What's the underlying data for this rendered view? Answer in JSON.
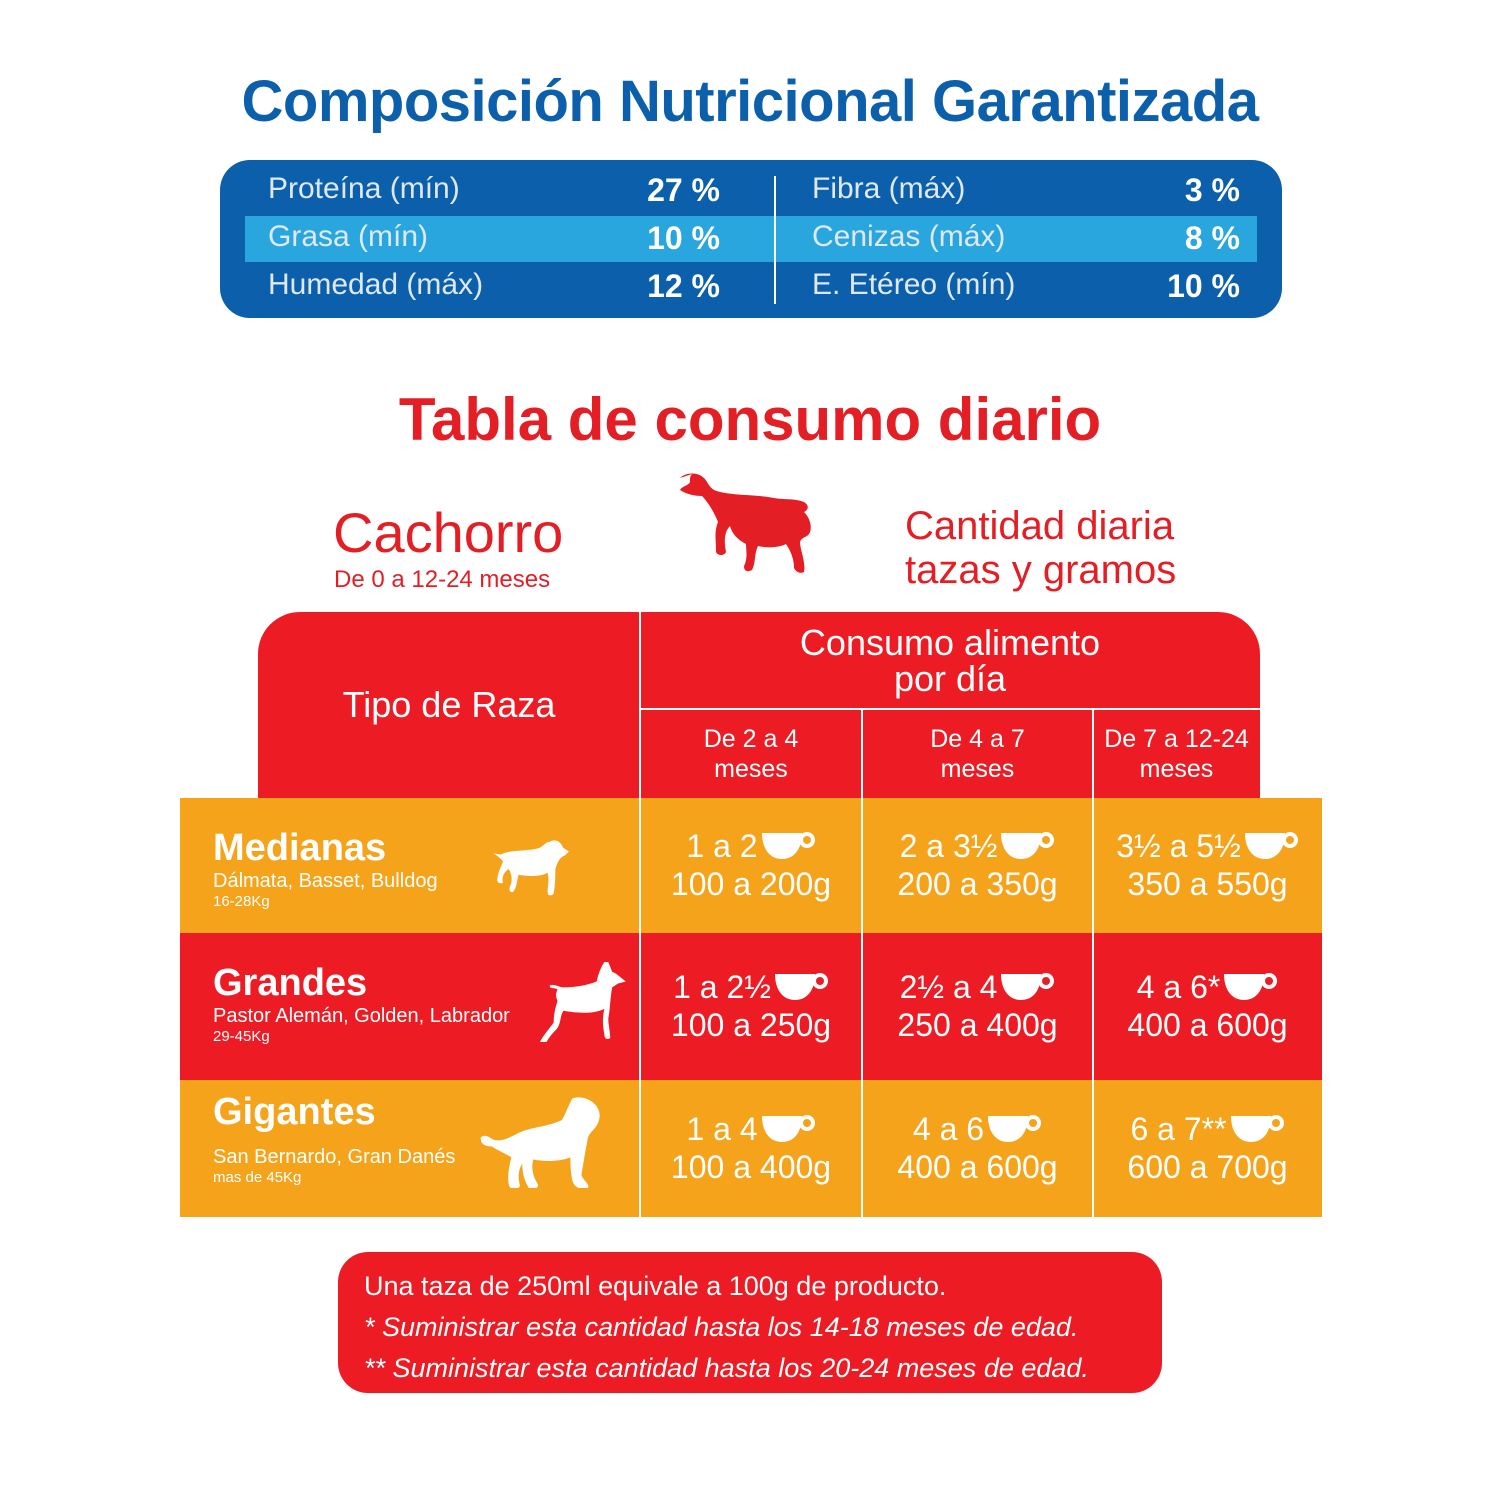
{
  "colors": {
    "blue": "#0b5fab",
    "light_blue": "#2aa6df",
    "red": "#ed1c24",
    "orange": "#f6a31c"
  },
  "nutrition": {
    "title": "Composición Nutricional Garantizada",
    "left": [
      {
        "label": "Proteína (mín)",
        "value": "27 %"
      },
      {
        "label": "Grasa (mín)",
        "value": "10 %"
      },
      {
        "label": "Humedad (máx)",
        "value": "12 %"
      }
    ],
    "right": [
      {
        "label": "Fibra (máx)",
        "value": "3 %"
      },
      {
        "label": "Cenizas (máx)",
        "value": "8 %"
      },
      {
        "label": "E. Etéreo (mín)",
        "value": "10 %"
      }
    ]
  },
  "consumo": {
    "title": "Tabla de consumo diario",
    "stage": "Cachorro",
    "stage_sub": "De 0 a 12-24 meses",
    "qty_line1": "Cantidad diaria",
    "qty_line2": "tazas y gramos",
    "header": {
      "breed": "Tipo de Raza",
      "consumo_1": "Consumo alimento",
      "consumo_2": "por día",
      "cols": [
        {
          "l1": "De 2 a 4",
          "l2": "meses"
        },
        {
          "l1": "De 4 a 7",
          "l2": "meses"
        },
        {
          "l1": "De 7 a 12-24",
          "l2": "meses"
        }
      ]
    },
    "rows": [
      {
        "name": "Medianas",
        "breeds": "Dálmata, Basset, Bulldog",
        "weight": "16-28Kg",
        "cells": [
          {
            "cups": "1 a 2",
            "grams": "100 a 200g"
          },
          {
            "cups": "2 a 3½",
            "grams": "200 a 350g"
          },
          {
            "cups": "3½ a 5½",
            "grams": "350 a 550g"
          }
        ]
      },
      {
        "name": "Grandes",
        "breeds": "Pastor Alemán, Golden, Labrador",
        "weight": "29-45Kg",
        "cells": [
          {
            "cups": "1 a 2½",
            "grams": "100 a 250g"
          },
          {
            "cups": "2½ a 4",
            "grams": "250 a 400g"
          },
          {
            "cups": "4 a 6*",
            "grams": "400 a 600g"
          }
        ]
      },
      {
        "name": "Gigantes",
        "breeds": "San Bernardo, Gran Danés",
        "weight": "mas de 45Kg",
        "cells": [
          {
            "cups": "1 a 4",
            "grams": "100 a 400g"
          },
          {
            "cups": "4 a 6",
            "grams": "400 a 600g"
          },
          {
            "cups": "6 a 7**",
            "grams": "600 a 700g"
          }
        ]
      }
    ]
  },
  "footer": {
    "line1": "Una taza de 250ml equivale a 100g de producto.",
    "line2": "* Suministrar esta cantidad hasta los 14-18 meses de edad.",
    "line3": " ** Suministrar esta cantidad hasta los 20-24 meses de edad."
  }
}
